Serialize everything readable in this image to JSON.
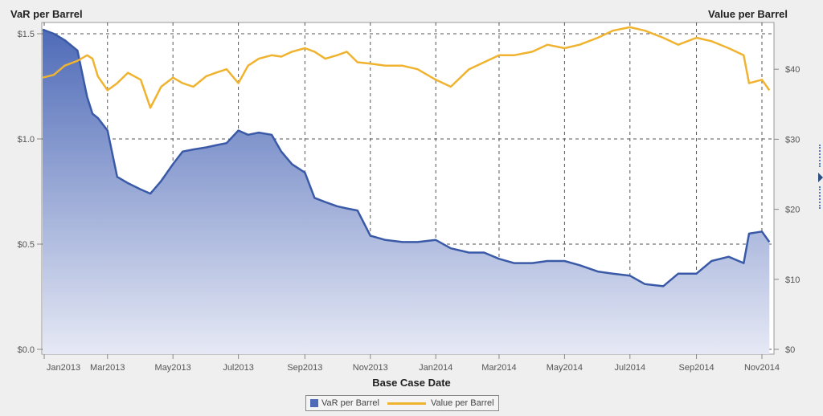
{
  "titles": {
    "left_axis": "VaR per Barrel",
    "right_axis": "Value per Barrel",
    "x_axis": "Base Case Date"
  },
  "legend": {
    "items": [
      {
        "label": "VaR per Barrel",
        "type": "area",
        "color": "#4f6bb8"
      },
      {
        "label": "Value per Barrel",
        "type": "line",
        "color": "#f0b32f"
      }
    ]
  },
  "colors": {
    "var_line": "#3a5aa8",
    "var_fill_top": "#4f6bb8",
    "var_fill_bottom": "#e6e9f5",
    "value_line": "#f0b32f",
    "grid": "#555555",
    "background": "#efefef",
    "plot_bg": "#ffffff"
  },
  "chart_data": {
    "type": "line",
    "title": "",
    "xlabel": "Base Case Date",
    "ylabel": "VaR per Barrel",
    "y2label": "Value per Barrel",
    "x_ticks": [
      "Jan2013",
      "Mar2013",
      "May2013",
      "Jul2013",
      "Sep2013",
      "Nov2013",
      "Jan2014",
      "Mar2014",
      "May2014",
      "Jul2014",
      "Sep2014",
      "Nov2014"
    ],
    "y_ticks": [
      "$0.0",
      "$0.5",
      "$1.0",
      "$1.5"
    ],
    "y2_ticks": [
      "$0",
      "$10",
      "$20",
      "$30",
      "$40"
    ],
    "ylim": [
      0,
      1.55
    ],
    "y2lim": [
      0,
      47
    ],
    "grid": true,
    "legend_position": "bottom",
    "series": [
      {
        "name": "VaR per Barrel",
        "axis": "left",
        "style": "area",
        "x": [
          "2013-01-01",
          "2013-01-10",
          "2013-01-20",
          "2013-02-01",
          "2013-02-10",
          "2013-02-15",
          "2013-02-20",
          "2013-03-01",
          "2013-03-10",
          "2013-03-20",
          "2013-04-01",
          "2013-04-10",
          "2013-04-20",
          "2013-05-01",
          "2013-05-10",
          "2013-05-20",
          "2013-06-01",
          "2013-06-10",
          "2013-06-20",
          "2013-07-01",
          "2013-07-10",
          "2013-07-20",
          "2013-08-01",
          "2013-08-10",
          "2013-08-20",
          "2013-09-01",
          "2013-09-10",
          "2013-09-20",
          "2013-10-01",
          "2013-10-10",
          "2013-10-20",
          "2013-11-01",
          "2013-11-15",
          "2013-12-01",
          "2013-12-15",
          "2014-01-01",
          "2014-01-15",
          "2014-02-01",
          "2014-02-15",
          "2014-03-01",
          "2014-03-15",
          "2014-04-01",
          "2014-04-15",
          "2014-05-01",
          "2014-05-15",
          "2014-06-01",
          "2014-06-15",
          "2014-07-01",
          "2014-07-15",
          "2014-08-01",
          "2014-08-15",
          "2014-09-01",
          "2014-09-15",
          "2014-10-01",
          "2014-10-15",
          "2014-10-20",
          "2014-11-01",
          "2014-11-08"
        ],
        "values": [
          1.52,
          1.5,
          1.47,
          1.42,
          1.2,
          1.12,
          1.1,
          1.04,
          0.82,
          0.79,
          0.76,
          0.74,
          0.8,
          0.88,
          0.94,
          0.95,
          0.96,
          0.97,
          0.98,
          1.04,
          1.02,
          1.03,
          1.02,
          0.94,
          0.88,
          0.84,
          0.72,
          0.7,
          0.68,
          0.67,
          0.66,
          0.54,
          0.52,
          0.51,
          0.51,
          0.52,
          0.48,
          0.46,
          0.46,
          0.43,
          0.41,
          0.41,
          0.42,
          0.42,
          0.4,
          0.37,
          0.36,
          0.35,
          0.31,
          0.3,
          0.36,
          0.36,
          0.42,
          0.44,
          0.41,
          0.55,
          0.56,
          0.51
        ]
      },
      {
        "name": "Value per Barrel",
        "axis": "right",
        "style": "line",
        "x": [
          "2013-01-01",
          "2013-01-10",
          "2013-01-20",
          "2013-02-01",
          "2013-02-10",
          "2013-02-15",
          "2013-02-20",
          "2013-03-01",
          "2013-03-10",
          "2013-03-20",
          "2013-04-01",
          "2013-04-10",
          "2013-04-20",
          "2013-05-01",
          "2013-05-10",
          "2013-05-20",
          "2013-06-01",
          "2013-06-10",
          "2013-06-20",
          "2013-07-01",
          "2013-07-10",
          "2013-07-20",
          "2013-08-01",
          "2013-08-10",
          "2013-08-20",
          "2013-09-01",
          "2013-09-10",
          "2013-09-20",
          "2013-10-01",
          "2013-10-10",
          "2013-10-20",
          "2013-11-01",
          "2013-11-15",
          "2013-12-01",
          "2013-12-15",
          "2014-01-01",
          "2014-01-15",
          "2014-02-01",
          "2014-02-15",
          "2014-03-01",
          "2014-03-15",
          "2014-04-01",
          "2014-04-15",
          "2014-05-01",
          "2014-05-15",
          "2014-06-01",
          "2014-06-15",
          "2014-07-01",
          "2014-07-15",
          "2014-08-01",
          "2014-08-15",
          "2014-09-01",
          "2014-09-15",
          "2014-10-01",
          "2014-10-15",
          "2014-10-20",
          "2014-11-01",
          "2014-11-08"
        ],
        "values": [
          38.8,
          39.2,
          40.5,
          41.2,
          42.0,
          41.5,
          39.0,
          37.0,
          38.0,
          39.5,
          38.5,
          34.5,
          37.5,
          38.8,
          38.0,
          37.5,
          39.0,
          39.5,
          40.0,
          38.0,
          40.5,
          41.5,
          42.0,
          41.8,
          42.5,
          43.0,
          42.5,
          41.5,
          42.0,
          42.5,
          41.0,
          40.8,
          40.5,
          40.5,
          40.0,
          38.5,
          37.5,
          40.0,
          41.0,
          42.0,
          42.0,
          42.5,
          43.5,
          43.0,
          43.5,
          44.5,
          45.5,
          46.0,
          45.5,
          44.5,
          43.5,
          44.5,
          44.0,
          43.0,
          42.0,
          38.0,
          38.5,
          37.0
        ]
      }
    ]
  }
}
